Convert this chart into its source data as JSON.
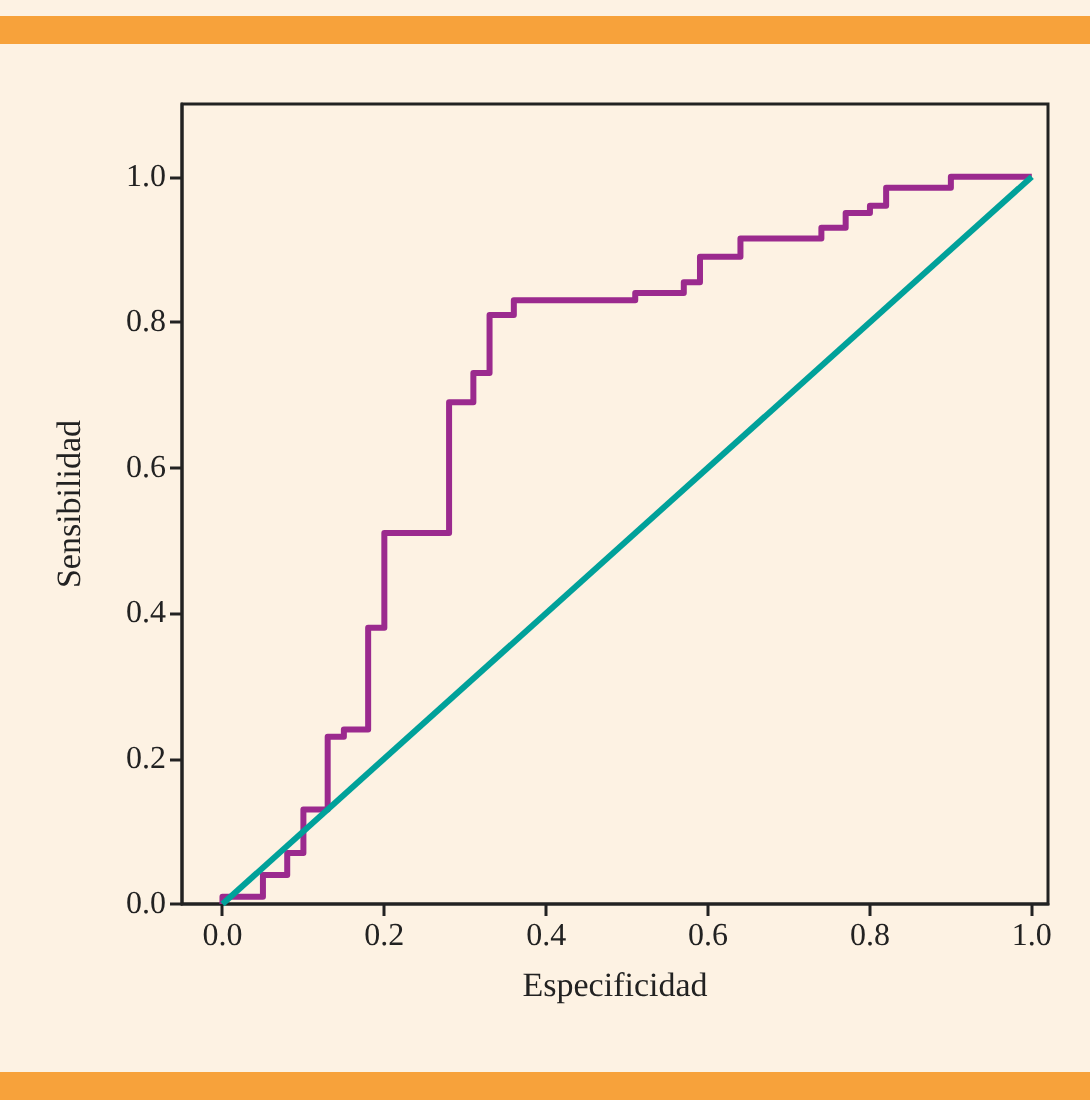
{
  "chart_data": {
    "type": "step",
    "xlabel": "Especificidad",
    "ylabel": "Sensibilidad",
    "xlim": [
      -0.05,
      1.02
    ],
    "ylim": [
      0,
      1.1
    ],
    "xticks": [
      {
        "value": 0,
        "label": "0.0"
      },
      0.2,
      0.4,
      0.6,
      0.8,
      {
        "value": 1,
        "label": "1.0"
      }
    ],
    "yticks": [
      {
        "value": 0,
        "label": "0.0"
      },
      0.2,
      0.4,
      0.6,
      0.8,
      {
        "value": 1,
        "label": "1.0"
      }
    ],
    "grid": false,
    "marker": "none",
    "series": [
      {
        "color": "#9b2a8e",
        "x": [
          0,
          0,
          0.05,
          0.08,
          0.1,
          0.13,
          0.15,
          0.18,
          0.2,
          0.28,
          0.31,
          0.33,
          0.36,
          0.51,
          0.57,
          0.59,
          0.64,
          0.74,
          0.77,
          0.8,
          0.82,
          0.9,
          1.0
        ],
        "values": [
          0,
          0.01,
          0.04,
          0.07,
          0.13,
          0.23,
          0.24,
          0.38,
          0.51,
          0.69,
          0.73,
          0.81,
          0.83,
          0.84,
          0.855,
          0.89,
          0.915,
          0.93,
          0.95,
          0.96,
          0.985,
          1.0,
          1.0
        ]
      },
      {
        "type": "line",
        "color": "#00a19a",
        "x": [
          0,
          1
        ],
        "values": [
          0,
          1
        ]
      }
    ]
  }
}
